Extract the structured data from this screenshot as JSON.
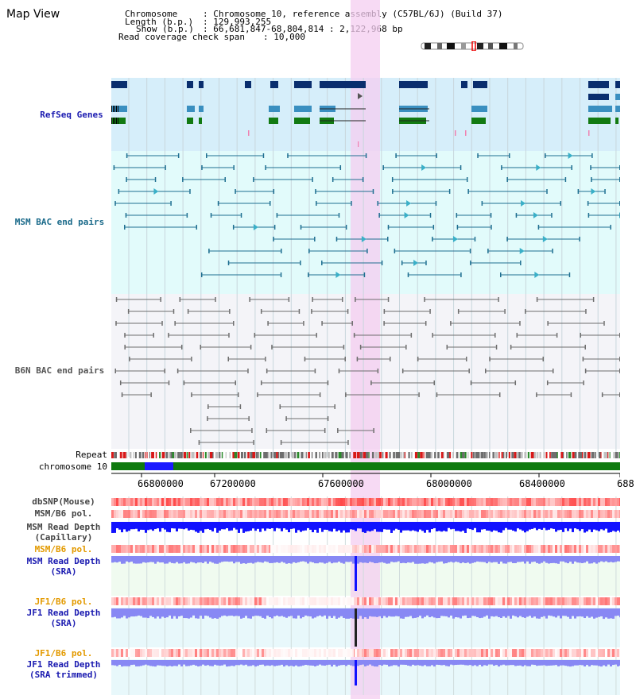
{
  "page": {
    "title": "Map View"
  },
  "info": {
    "chromosome_key": "Chromosome",
    "chromosome_val": ": Chromosome 10, reference assembly (C57BL/6J) (Build 37)",
    "length_key": "Length (b.p.)",
    "length_val": ": 129,993,255",
    "show_key": "Show (b.p.)",
    "show_val": ": 66,681,847-68,804,814 : 2,122,968 bp",
    "coverage_key": "Read coverage check span",
    "coverage_val": ": 10,000"
  },
  "tracks": {
    "refseq": "RefSeq Genes",
    "msm_bac": "MSM BAC end pairs",
    "b6n_bac": "B6N BAC end pairs",
    "repeat": "Repeat",
    "chromosome": "chromosome 10",
    "dbsnp": "dbSNP(Mouse)",
    "msm_b6_pol_1": "MSM/B6 pol.",
    "msm_depth_cap_1": "MSM Read Depth",
    "msm_depth_cap_2": "(Capillary)",
    "msm_b6_pol_2": "MSM/B6 pol.",
    "msm_depth_sra_1": "MSM Read Depth",
    "msm_depth_sra_2": "(SRA)",
    "jf1_pol_1": "JF1/B6 pol.",
    "jf1_depth_sra_1": "JF1 Read Depth",
    "jf1_depth_sra_2": "(SRA)",
    "jf1_pol_2": "JF1/B6 pol.",
    "jf1_depth_trim_1": "JF1 Read Depth",
    "jf1_depth_trim_2": "(SRA trimmed)"
  },
  "axis": {
    "ticks": [
      "66800000",
      "67200000",
      "67600000",
      "68000000",
      "68400000",
      "688"
    ]
  },
  "colors": {
    "accent_highlight": "#f4cdf0",
    "refseq_bg": "#d6eefa",
    "msm_bg": "#e2fbfb",
    "b6n_bg": "#f4f4f8",
    "gene_dark": "#0a2e6e",
    "gene_mid": "#3a8fc0",
    "gene_green": "#127a12",
    "msm_pair": "#1f6f91",
    "b6n_pair": "#6e6e6e",
    "depth_blue": "#1212ff",
    "depth_light": "#8888f4",
    "label_blue": "#1a1ab0",
    "label_teal": "#1a6a8a",
    "label_orange": "#e39a00"
  }
}
